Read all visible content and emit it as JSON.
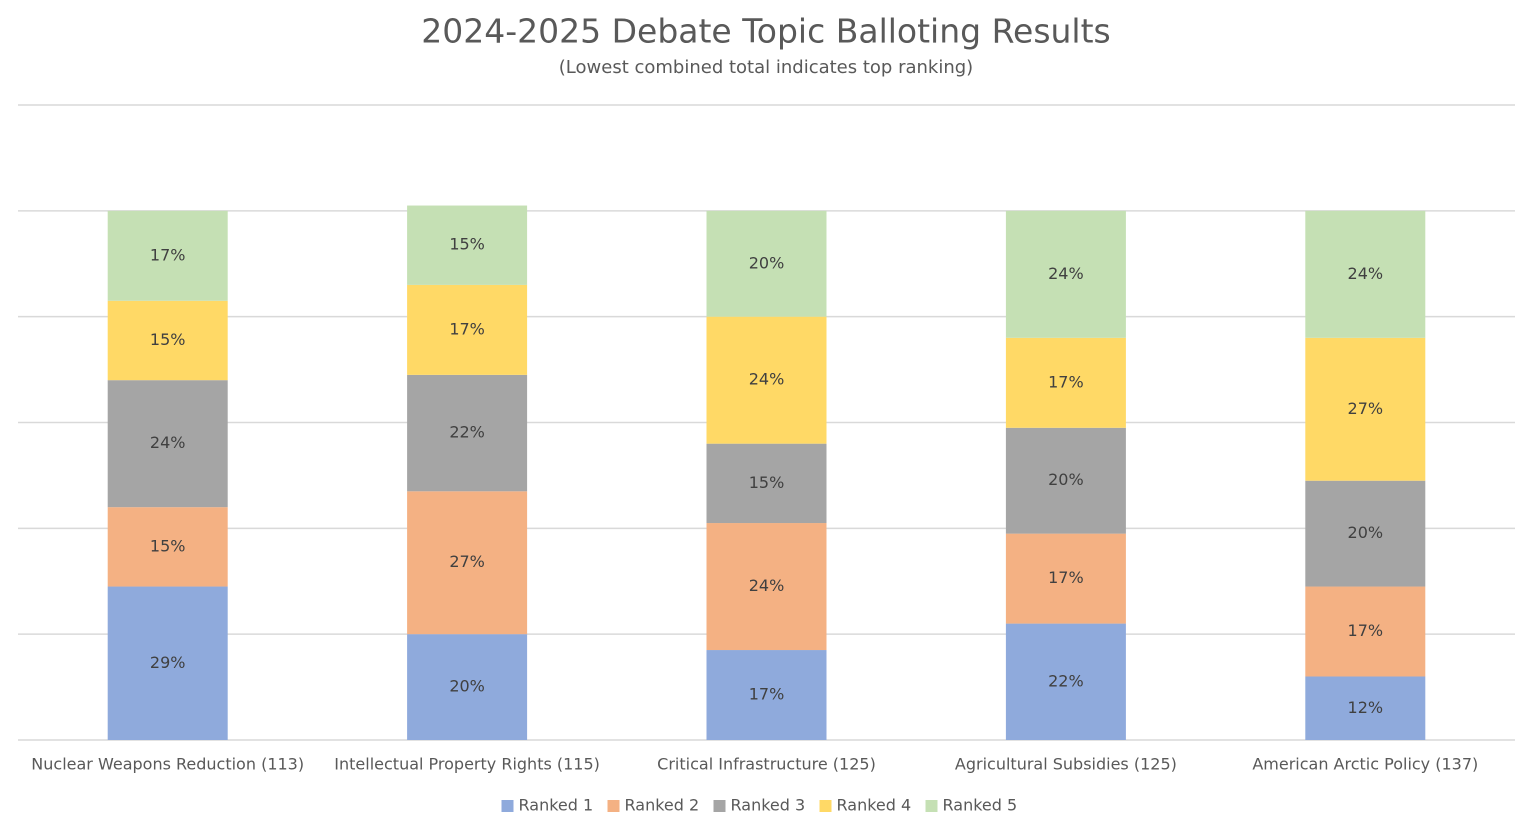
{
  "chart_data": {
    "type": "stacked_bar",
    "title": "2024-2025 Debate Topic Balloting Results",
    "subtitle": "(Lowest combined total indicates top ranking)",
    "categories": [
      "Nuclear Weapons Reduction (113)",
      "Intellectual Property Rights (115)",
      "Critical Infrastructure (125)",
      "Agricultural Subsidies (125)",
      "American Arctic Policy (137)"
    ],
    "series": [
      {
        "name": "Ranked 1",
        "color": "#8faadc",
        "values": [
          29,
          20,
          17,
          22,
          12
        ],
        "value_labels": [
          "29%",
          "20%",
          "17%",
          "22%",
          "12%"
        ]
      },
      {
        "name": "Ranked 2",
        "color": "#f4b183",
        "values": [
          15,
          27,
          24,
          17,
          17
        ],
        "value_labels": [
          "15%",
          "27%",
          "24%",
          "17%",
          "17%"
        ]
      },
      {
        "name": "Ranked 3",
        "color": "#a5a5a5",
        "values": [
          24,
          22,
          15,
          20,
          20
        ],
        "value_labels": [
          "24%",
          "22%",
          "15%",
          "20%",
          "20%"
        ]
      },
      {
        "name": "Ranked 4",
        "color": "#ffd966",
        "values": [
          15,
          17,
          24,
          17,
          27
        ],
        "value_labels": [
          "15%",
          "17%",
          "24%",
          "17%",
          "27%"
        ]
      },
      {
        "name": "Ranked 5",
        "color": "#c5e0b4",
        "values": [
          17,
          15,
          20,
          24,
          24
        ],
        "value_labels": [
          "17%",
          "15%",
          "20%",
          "24%",
          "24%"
        ]
      }
    ],
    "ylim": [
      0,
      120
    ],
    "yticks": [
      0,
      20,
      40,
      60,
      80,
      100,
      120
    ],
    "grid": true,
    "legend": "bottom"
  }
}
